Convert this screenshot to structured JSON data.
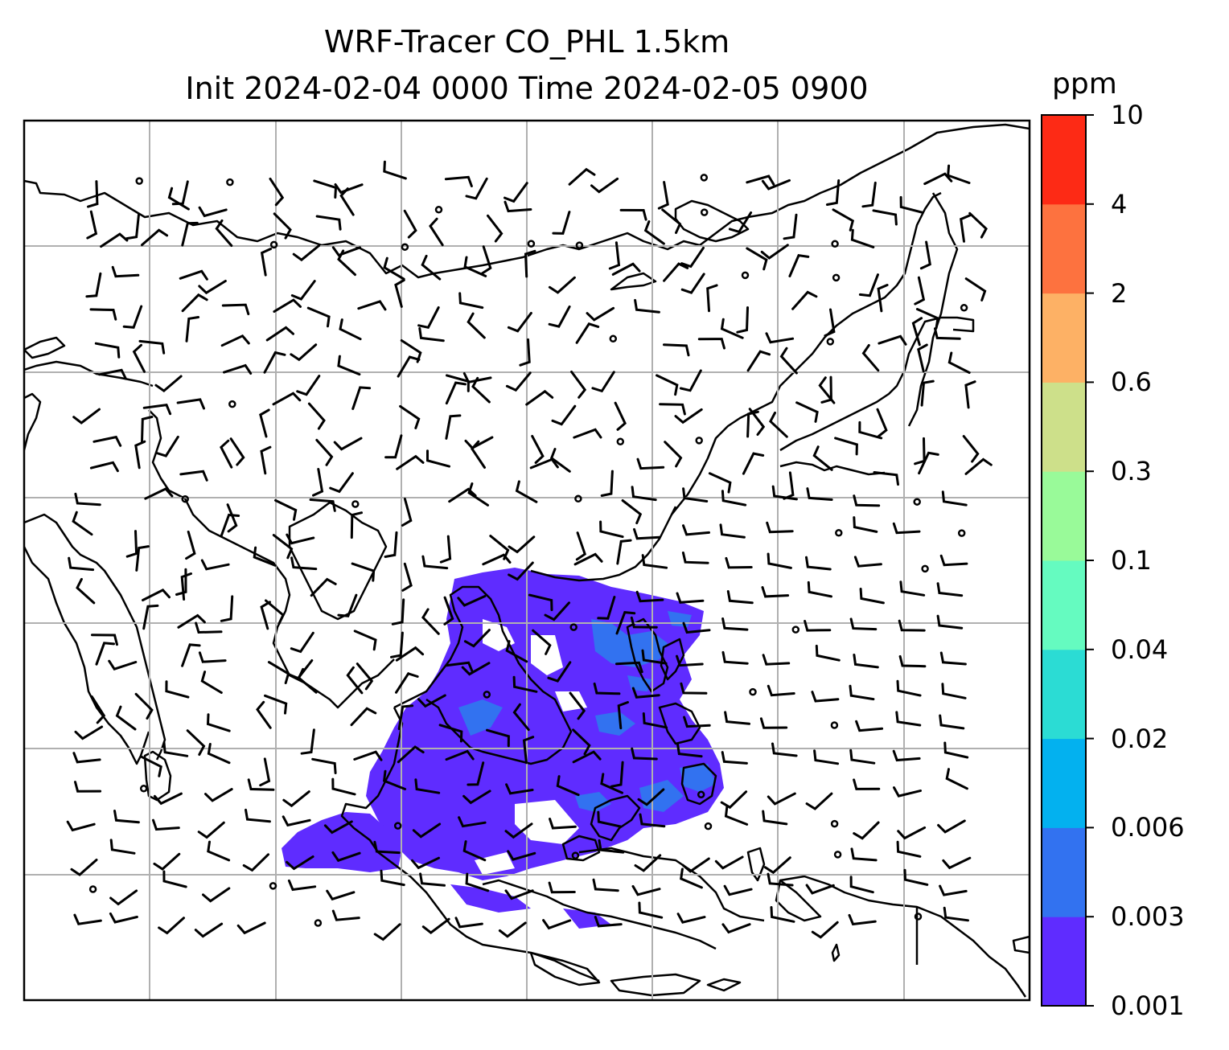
{
  "title_line1": "WRF-Tracer CO_PHL 1.5km",
  "title_line2": "Init 2024-02-04 0000 Time 2024-02-05 0900",
  "colorbar": {
    "unit": "ppm",
    "levels": [
      "0.001",
      "0.003",
      "0.006",
      "0.02",
      "0.04",
      "0.1",
      "0.3",
      "0.6",
      "2",
      "4",
      "10"
    ],
    "colors": [
      "#5f2cff",
      "#3272f0",
      "#03b1ef",
      "#2bdcd4",
      "#65fbc0",
      "#99fa99",
      "#cde08a",
      "#fdb165",
      "#fd723f",
      "#fd2a15"
    ]
  },
  "map": {
    "grid": "on",
    "coastline_color": "#000000",
    "field_color_low": "#5f2cff",
    "field_color_mid": "#3272f0"
  }
}
